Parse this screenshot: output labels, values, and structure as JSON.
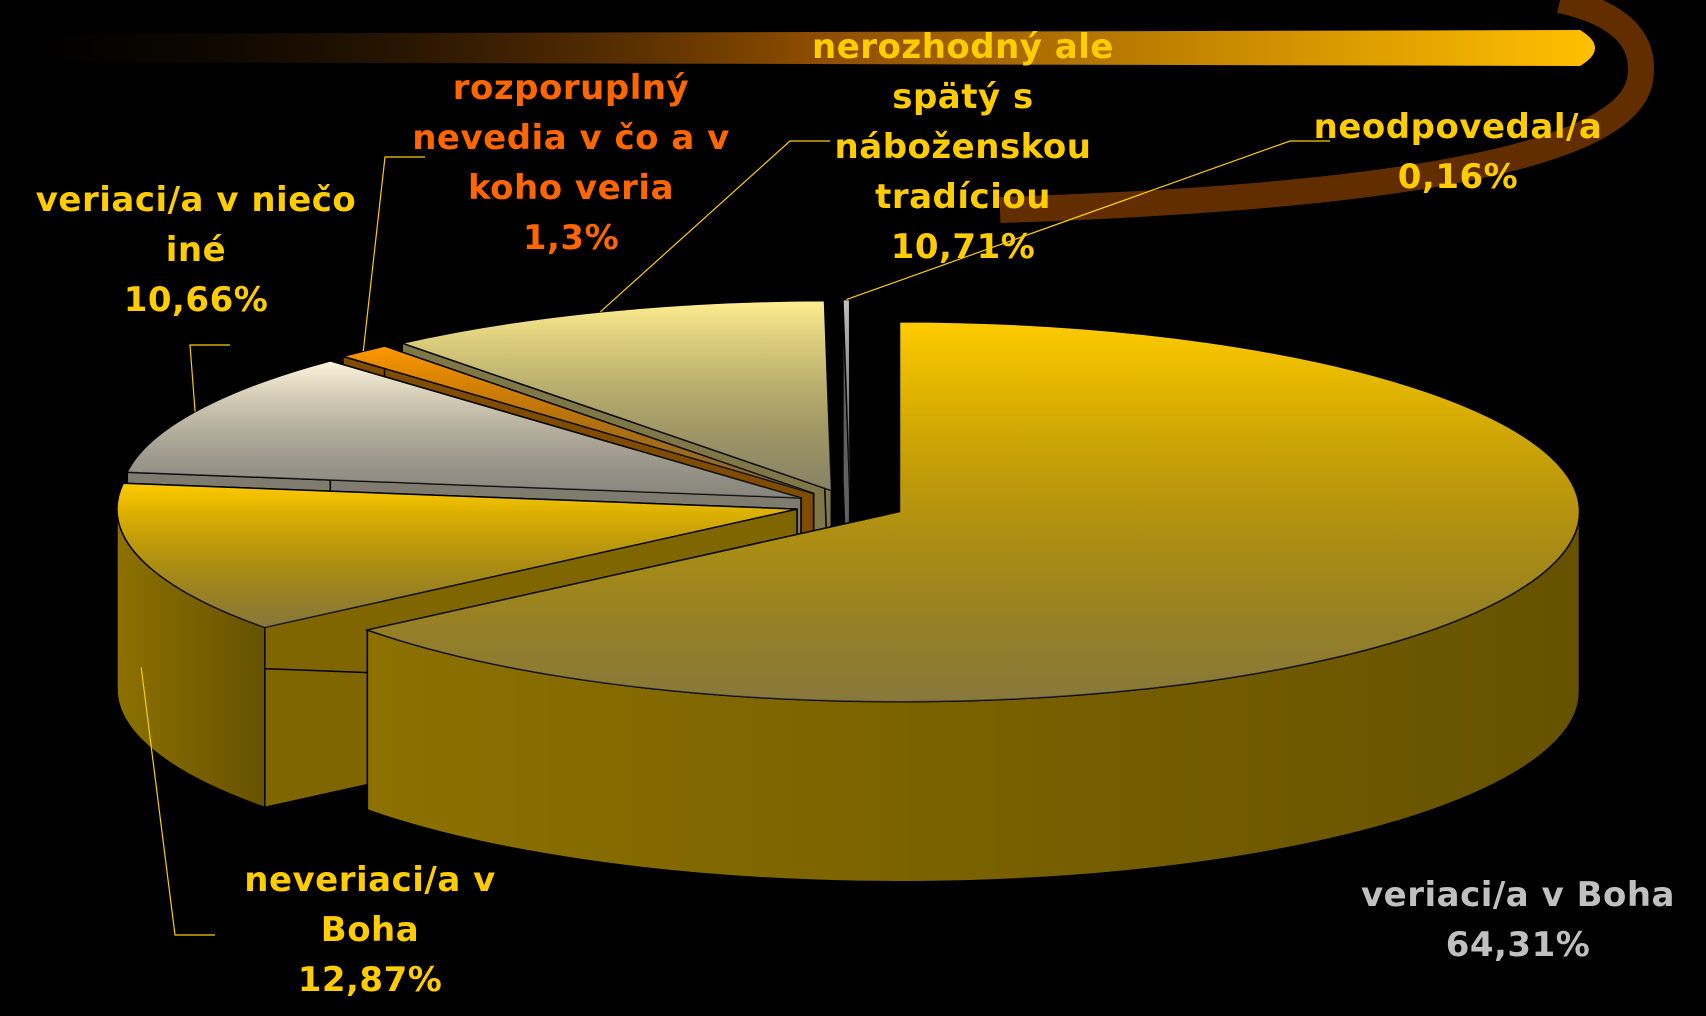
{
  "chart_data": {
    "type": "pie3d",
    "categories": [
      "veriaci/a v Boha",
      "neveriaci/a v Boha",
      "veriaci/a v niečo iné",
      "rozporuplný nevedia v čo a v koho veria",
      "nerozhodný ale spätý s náboženskou tradíciou",
      "neodpovedal/a"
    ],
    "values": [
      64.31,
      12.87,
      10.66,
      1.3,
      10.71,
      0.16
    ],
    "value_labels": [
      "64,31%",
      "12,87%",
      "10,66%",
      "1,3%",
      "10,71%",
      "0,16%"
    ],
    "colors": [
      "#ffcc00",
      "#ffcc00",
      "#fff6dc",
      "#ff9900",
      "#ffee90",
      "#c0c0c0"
    ],
    "label_colors": [
      "#c0c0c0",
      "#ffcc00",
      "#ffcc00",
      "#ff6600",
      "#ffcc00",
      "#ffcc00"
    ]
  }
}
